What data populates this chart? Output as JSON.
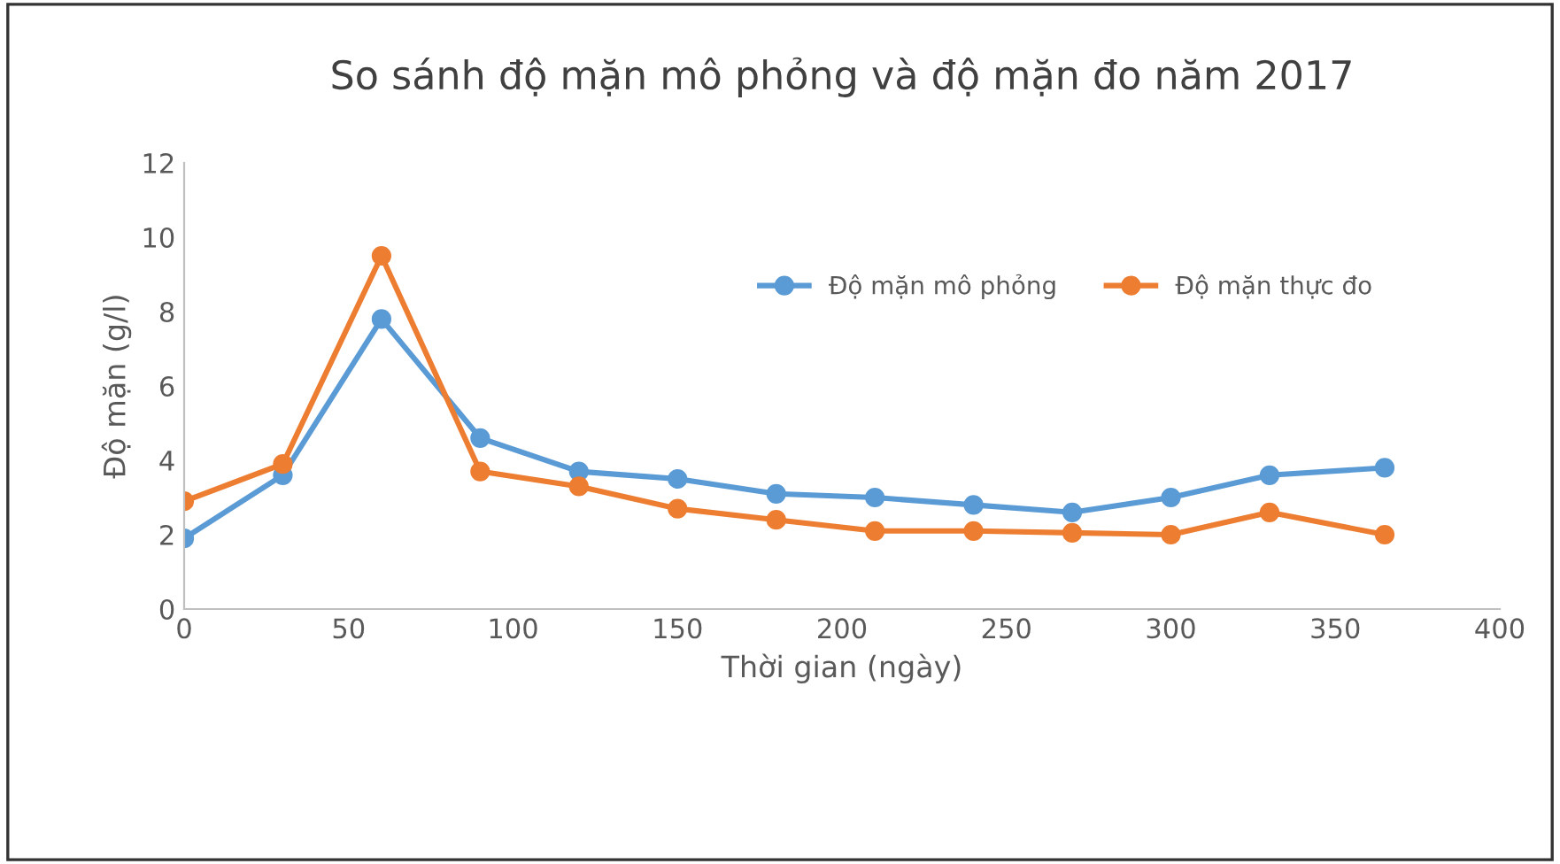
{
  "chart_data": {
    "type": "line",
    "title": "So sánh độ mặn mô phỏng và độ mặn đo năm 2017",
    "xlabel": "Thời gian (ngày)",
    "ylabel": "Độ mặn (g/l)",
    "x": [
      0,
      30,
      60,
      90,
      120,
      150,
      180,
      210,
      240,
      270,
      300,
      330,
      365
    ],
    "series": [
      {
        "name": "Độ mặn mô phỏng",
        "color": "#5b9bd5",
        "values": [
          1.9,
          3.6,
          7.8,
          4.6,
          3.7,
          3.5,
          3.1,
          3.0,
          2.8,
          2.6,
          3.0,
          3.6,
          3.8
        ]
      },
      {
        "name": "Độ mặn thực đo",
        "color": "#ed7d31",
        "values": [
          2.9,
          3.9,
          9.5,
          3.7,
          3.3,
          2.7,
          2.4,
          2.1,
          2.1,
          2.05,
          2.0,
          2.6,
          2.0
        ]
      }
    ],
    "xlim": [
      0,
      400
    ],
    "xticks": [
      0,
      50,
      100,
      150,
      200,
      250,
      300,
      350,
      400
    ],
    "ylim": [
      0,
      12
    ],
    "yticks": [
      0,
      2,
      4,
      6,
      8,
      10,
      12
    ],
    "grid": false,
    "legend": "top right",
    "marker": "circle",
    "line_style": "solid"
  }
}
